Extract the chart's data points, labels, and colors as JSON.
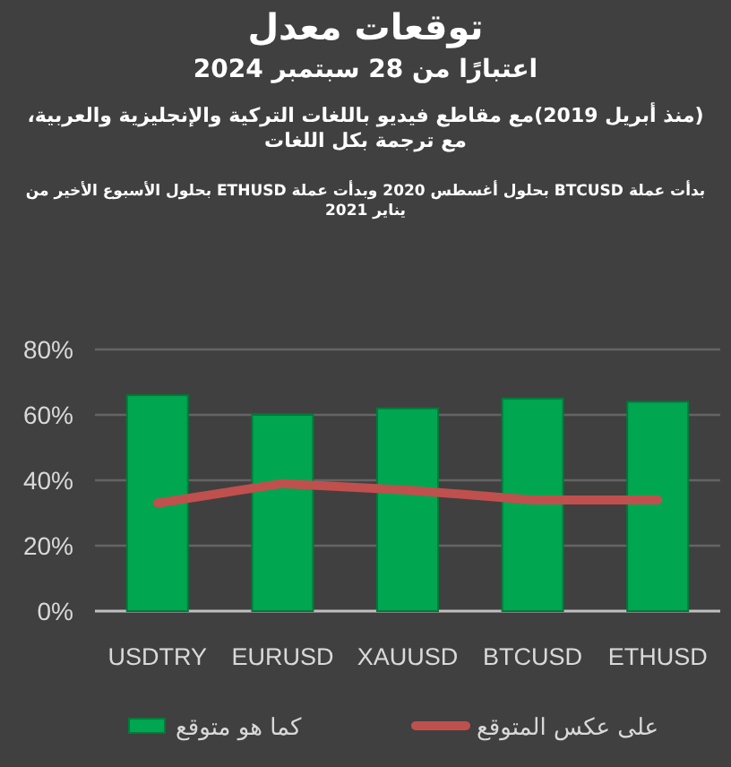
{
  "chart_data": {
    "type": "bar",
    "title": "توقعات معدل",
    "subtitle": "اعتبارًا من 28 سبتمبر 2024",
    "annotations": [
      "(منذ أبريل 2019)مع مقاطع فيديو باللغات التركية والإنجليزية والعربية، مع ترجمة بكل اللغات",
      "بدأت عملة BTCUSD بحلول أغسطس 2020 وبدأت عملة ETHUSD بحلول الأسبوع الأخير من يناير 2021"
    ],
    "categories": [
      "USDTRY",
      "EURUSD",
      "XAUUSD",
      "BTCUSD",
      "ETHUSD"
    ],
    "series": [
      {
        "name": "كما هو متوقع",
        "color": "#00a650",
        "values": [
          66,
          60,
          62,
          65,
          64
        ]
      },
      {
        "name": "على عكس المتوقع",
        "type": "line",
        "color": "#c0504d",
        "values": [
          33,
          39,
          37,
          34,
          34
        ]
      }
    ],
    "ylim": [
      0,
      80
    ],
    "yticks": [
      {
        "value": 0,
        "label": "0%"
      },
      {
        "value": 20,
        "label": "20%"
      },
      {
        "value": 40,
        "label": "40%"
      },
      {
        "value": 60,
        "label": "60%"
      },
      {
        "value": 80,
        "label": "80%"
      }
    ],
    "grid": "y",
    "legend": "bottom",
    "marker": "none"
  }
}
